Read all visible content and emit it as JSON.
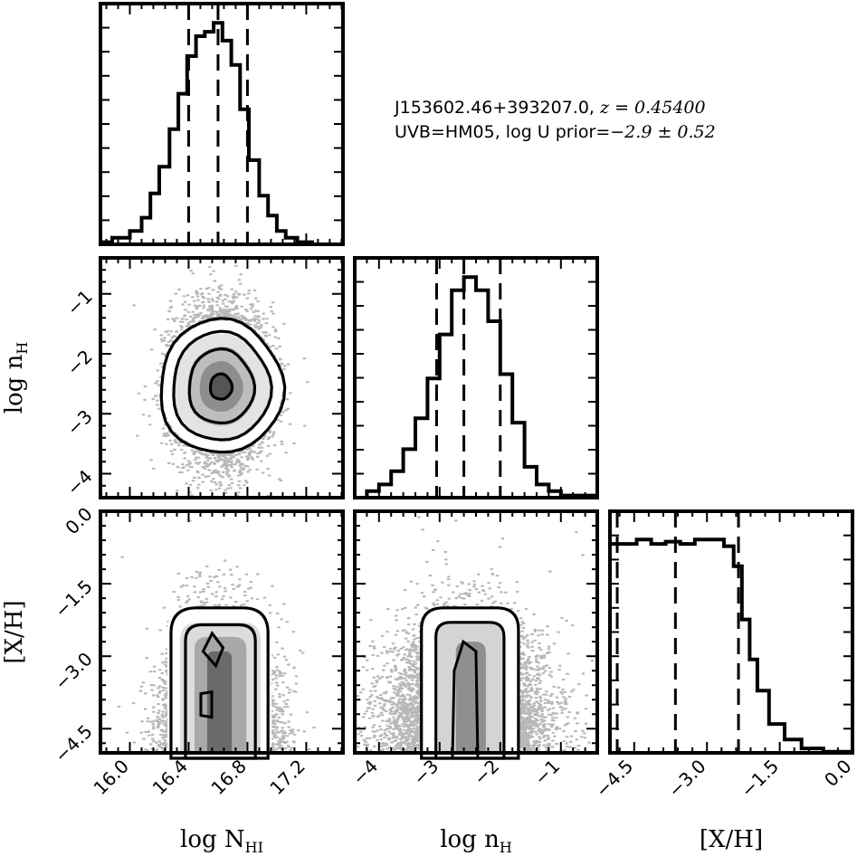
{
  "annotation": {
    "line1_prefix": "J153602.46+393207.0, ",
    "line1_math": "z = 0.45400",
    "line2_prefix": "UVB=HM05, log U prior=",
    "line2_math": "−2.9 ± 0.52"
  },
  "chart_data": {
    "type": "corner",
    "parameters": [
      {
        "key": "logNHI",
        "label": "log N",
        "label_sub": "HI",
        "range": [
          15.8,
          17.45
        ],
        "ticks": [
          16.0,
          16.4,
          16.8,
          17.2
        ],
        "tick_labels": [
          "16.0",
          "16.4",
          "16.8",
          "17.2"
        ],
        "quantiles": [
          16.4,
          16.6,
          16.8
        ]
      },
      {
        "key": "lognH",
        "label": "log n",
        "label_sub": "H",
        "range": [
          -4.4,
          -0.4
        ],
        "ticks": [
          -4,
          -3,
          -2,
          -1
        ],
        "tick_labels": [
          "−4",
          "−3",
          "−2",
          "−1"
        ],
        "quantiles": [
          -3.05,
          -2.6,
          -2.0
        ]
      },
      {
        "key": "XH",
        "label": "[X/H]",
        "label_sub": "",
        "range": [
          -5.0,
          0.0
        ],
        "ticks": [
          -4.5,
          -3.0,
          -1.5,
          0.0
        ],
        "tick_labels": [
          "−4.5",
          "−3.0",
          "−1.5",
          "0.0"
        ],
        "quantiles": [
          -4.85,
          -3.65,
          -2.35
        ]
      }
    ],
    "histograms": [
      {
        "param": "logNHI",
        "bin_edges": [
          15.8,
          15.88,
          16.0,
          16.08,
          16.14,
          16.2,
          16.27,
          16.33,
          16.39,
          16.45,
          16.51,
          16.57,
          16.63,
          16.69,
          16.75,
          16.81,
          16.88,
          16.94,
          17.0,
          17.06,
          17.14,
          17.24,
          17.45
        ],
        "counts": [
          0.01,
          0.03,
          0.06,
          0.12,
          0.23,
          0.35,
          0.52,
          0.68,
          0.85,
          0.94,
          0.96,
          1.0,
          0.92,
          0.81,
          0.61,
          0.38,
          0.22,
          0.13,
          0.06,
          0.03,
          0.01,
          0.0
        ]
      },
      {
        "param": "lognH",
        "bin_edges": [
          -4.4,
          -4.2,
          -4.0,
          -3.8,
          -3.6,
          -3.4,
          -3.2,
          -3.0,
          -2.8,
          -2.6,
          -2.4,
          -2.2,
          -2.0,
          -1.8,
          -1.6,
          -1.4,
          -1.2,
          -1.0,
          -0.4
        ],
        "counts": [
          0.0,
          0.03,
          0.06,
          0.12,
          0.22,
          0.36,
          0.54,
          0.74,
          0.94,
          1.0,
          0.94,
          0.8,
          0.56,
          0.34,
          0.14,
          0.06,
          0.03,
          0.01
        ]
      },
      {
        "param": "XH",
        "bin_edges": [
          -5.0,
          -4.75,
          -4.45,
          -4.15,
          -3.85,
          -3.55,
          -3.25,
          -2.95,
          -2.65,
          -2.45,
          -2.28,
          -2.12,
          -1.96,
          -1.72,
          -1.4,
          -1.05,
          -0.6,
          0.0
        ],
        "counts": [
          0.94,
          0.94,
          0.96,
          0.94,
          0.95,
          0.94,
          0.96,
          0.96,
          0.93,
          0.84,
          0.6,
          0.42,
          0.28,
          0.13,
          0.06,
          0.02,
          0.005
        ]
      }
    ],
    "contour_panels": [
      {
        "x": "logNHI",
        "y": "lognH",
        "center": [
          16.62,
          -2.55
        ],
        "levels": 4
      },
      {
        "x": "logNHI",
        "y": "XH",
        "center": [
          16.6,
          -3.3
        ],
        "levels": 4
      },
      {
        "x": "lognH",
        "y": "XH",
        "center": [
          -2.55,
          -3.5
        ],
        "levels": 4
      }
    ]
  }
}
